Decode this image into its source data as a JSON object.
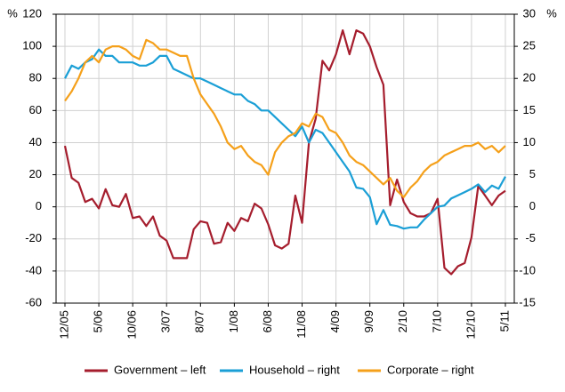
{
  "chart_data": {
    "type": "line",
    "y_label": "%",
    "y2_label": "%",
    "categories": [
      "12/05",
      null,
      null,
      null,
      null,
      "5/06",
      null,
      null,
      null,
      null,
      "10/06",
      null,
      null,
      null,
      null,
      "3/07",
      null,
      null,
      null,
      null,
      "8/07",
      null,
      null,
      null,
      null,
      "1/08",
      null,
      null,
      null,
      null,
      "6/08",
      null,
      null,
      null,
      null,
      "11/08",
      null,
      null,
      null,
      null,
      "4/09",
      null,
      null,
      null,
      null,
      "9/09",
      null,
      null,
      null,
      null,
      "2/10",
      null,
      null,
      null,
      null,
      "7/10",
      null,
      null,
      null,
      null,
      "12/10",
      null,
      null,
      null,
      null,
      "5/11"
    ],
    "ylim": [
      -60,
      120
    ],
    "yticks": [
      -60,
      -40,
      -20,
      0,
      20,
      40,
      60,
      80,
      100,
      120
    ],
    "y2lim": [
      -15,
      30
    ],
    "y2ticks": [
      -15,
      -10,
      -5,
      0,
      5,
      10,
      15,
      20,
      25,
      30
    ],
    "grid": true,
    "legend": "bottom",
    "series": [
      {
        "name": "Government – left",
        "color": "#a51d2d",
        "axis": "y",
        "values": [
          38,
          18,
          15,
          3,
          5,
          -1,
          11,
          1,
          0,
          8,
          -7,
          -6,
          -12,
          -6,
          -18,
          -21,
          -32,
          -32,
          -32,
          -14,
          -9,
          -10,
          -23,
          -22,
          -10,
          -15,
          -7,
          -9,
          2,
          -1,
          -11,
          -24,
          -26,
          -23,
          7,
          -10,
          40,
          55,
          91,
          85,
          95,
          110,
          95,
          110,
          108,
          100,
          87,
          76,
          1,
          17,
          3,
          -4,
          -6,
          -6,
          -4,
          5,
          -38,
          -42,
          -37,
          -35,
          -19,
          13,
          7,
          1,
          7,
          10
        ]
      },
      {
        "name": "Household – right",
        "color": "#1a9fd6",
        "axis": "y2",
        "values": [
          20,
          22,
          21.5,
          22.5,
          23,
          24.5,
          23.5,
          23.5,
          22.5,
          22.5,
          22.5,
          22,
          22,
          22.5,
          23.5,
          23.5,
          21.5,
          21,
          20.5,
          20,
          20,
          19.5,
          19,
          18.5,
          18,
          17.5,
          17.5,
          16.5,
          16,
          15,
          15,
          14,
          13,
          12,
          11,
          12.5,
          10,
          12,
          11.5,
          10,
          8.5,
          7,
          5.5,
          3,
          2.8,
          1.5,
          -2.7,
          -0.5,
          -2.8,
          -3,
          -3.4,
          -3.2,
          -3.2,
          -2,
          -1,
          0,
          0.2,
          1.3,
          1.8,
          2.3,
          2.8,
          3.5,
          2.3,
          3.3,
          2.8,
          4.7
        ]
      },
      {
        "name": "Corporate – right",
        "color": "#f5a01a",
        "axis": "y2",
        "values": [
          16.5,
          18,
          20,
          22.5,
          23.5,
          22.5,
          24.5,
          25,
          25,
          24.5,
          23.5,
          23,
          26,
          25.5,
          24.5,
          24.5,
          24,
          23.5,
          23.5,
          20,
          17.5,
          16,
          14.5,
          12.5,
          10,
          9,
          9.5,
          8,
          7,
          6.5,
          5,
          8.5,
          10,
          11,
          11.5,
          13,
          12.5,
          14.5,
          14,
          12,
          11.5,
          10,
          8,
          7,
          6.5,
          5.5,
          4.5,
          3.5,
          4.5,
          2.5,
          1.5,
          3,
          4,
          5.5,
          6.5,
          7,
          8,
          8.5,
          9,
          9.5,
          9.5,
          10,
          9,
          9.5,
          8.5,
          9.5
        ]
      }
    ]
  }
}
